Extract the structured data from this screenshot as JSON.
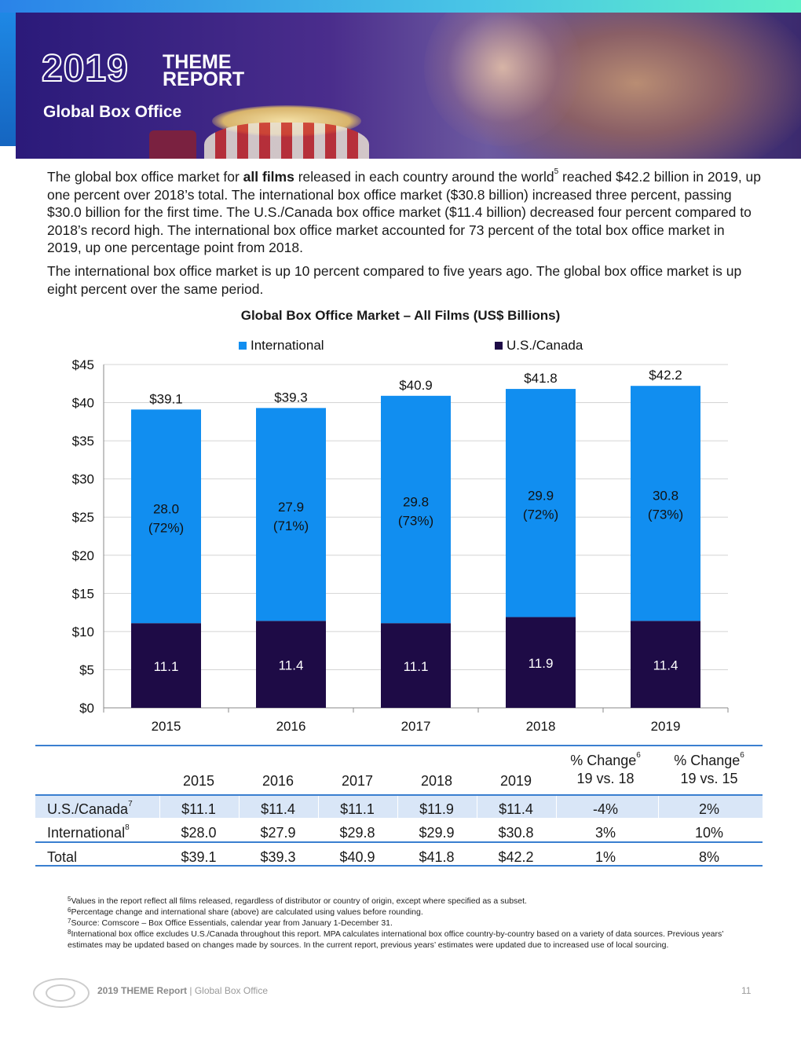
{
  "header": {
    "year": "2019",
    "theme_line1": "THEME",
    "theme_line2": "REPORT",
    "subtitle": "Global Box Office"
  },
  "intro": {
    "p1_a": "The global box office market for ",
    "p1_bold": "all films",
    "p1_b": " released in each country around the world",
    "p1_sup": "5",
    "p1_c": " reached $42.2 billion in 2019, up one percent over 2018’s total. The international box office market ($30.8 billion) increased three percent, passing $30.0 billion for the first time. The U.S./Canada box office market ($11.4 billion) decreased four percent compared to 2018’s record high. The international box office market accounted for 73 percent of the total box office market in 2019, up one percentage point from 2018.",
    "p2": "The international box office market is up 10 percent compared to five years ago. The global box office market is up eight percent over the same period."
  },
  "chart_data": {
    "type": "bar",
    "stacked": true,
    "title": "Global Box Office Market – All Films (US$ Billions)",
    "categories": [
      "2015",
      "2016",
      "2017",
      "2018",
      "2019"
    ],
    "series": [
      {
        "name": "U.S./Canada",
        "color": "#1e0b46",
        "values": [
          11.1,
          11.4,
          11.1,
          11.9,
          11.4
        ],
        "labels": [
          "11.1",
          "11.4",
          "11.1",
          "11.9",
          "11.4"
        ]
      },
      {
        "name": "International",
        "color": "#118ef0",
        "values": [
          28.0,
          27.9,
          29.8,
          29.9,
          30.8
        ],
        "labels": [
          "28.0",
          "27.9",
          "29.8",
          "29.9",
          "30.8"
        ],
        "share_labels": [
          "(72%)",
          "(71%)",
          "(73%)",
          "(72%)",
          "(73%)"
        ]
      }
    ],
    "totals": [
      "$39.1",
      "$39.3",
      "$40.9",
      "$41.8",
      "$42.2"
    ],
    "total_values": [
      39.1,
      39.3,
      40.9,
      41.8,
      42.2
    ],
    "yticks": [
      "$0",
      "$5",
      "$10",
      "$15",
      "$20",
      "$25",
      "$30",
      "$35",
      "$40",
      "$45"
    ],
    "ylim": [
      0,
      45
    ],
    "legend": [
      "International",
      "U.S./Canada"
    ],
    "legend_position": "top",
    "grid": true
  },
  "table": {
    "headers": [
      "2015",
      "2016",
      "2017",
      "2018",
      "2019"
    ],
    "change1_line1": "% Change",
    "change1_sup": "6",
    "change1_line2": "19 vs. 18",
    "change2_line1": "% Change",
    "change2_sup": "6",
    "change2_line2": "19 vs. 15",
    "rows": [
      {
        "label": "U.S./Canada",
        "sup": "7",
        "values": [
          "$11.1",
          "$11.4",
          "$11.1",
          "$11.9",
          "$11.4",
          "-4%",
          "2%"
        ]
      },
      {
        "label": "International",
        "sup": "8",
        "values": [
          "$28.0",
          "$27.9",
          "$29.8",
          "$29.9",
          "$30.8",
          "3%",
          "10%"
        ]
      },
      {
        "label": "Total",
        "sup": "",
        "values": [
          "$39.1",
          "$39.3",
          "$40.9",
          "$41.8",
          "$42.2",
          "1%",
          "8%"
        ]
      }
    ]
  },
  "footnotes": [
    {
      "num": "5",
      "text": "Values in the report reflect all films released, regardless of distributor or country of origin, except where specified as a subset."
    },
    {
      "num": "6",
      "text": "Percentage change and international share (above) are calculated using values before rounding."
    },
    {
      "num": "7",
      "text": "Source:  Comscore – Box Office Essentials, calendar year from January 1-December 31."
    },
    {
      "num": "8",
      "text": "International box office excludes U.S./Canada throughout this report. MPA calculates international box office country-by-country based on a variety of data sources. Previous years’ estimates may be updated based on changes made by sources. In the current report, previous years’ estimates were updated due to increased use of local sourcing."
    }
  ],
  "footer": {
    "report": "2019 THEME Report",
    "sep": " | ",
    "section": "Global Box Office",
    "page": "11"
  }
}
